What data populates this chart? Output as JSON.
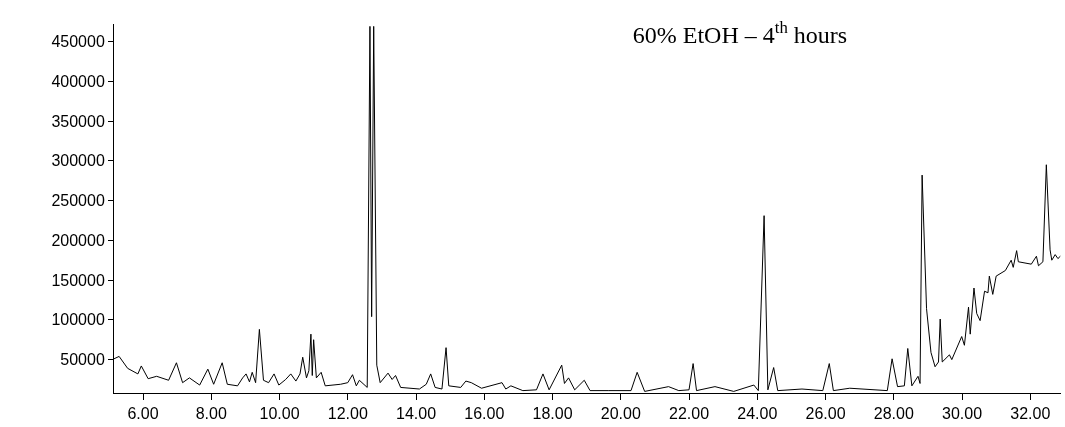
{
  "chart_data": {
    "type": "line",
    "title": "60% EtOH – 4$^{th}$ hours",
    "x": [
      5.15,
      5.3,
      5.55,
      5.85,
      5.95,
      6.15,
      6.4,
      6.75,
      6.98,
      7.16,
      7.36,
      7.66,
      7.9,
      8.07,
      8.32,
      8.47,
      8.77,
      8.92,
      9.02,
      9.12,
      9.2,
      9.3,
      9.41,
      9.53,
      9.68,
      9.84,
      9.98,
      10.18,
      10.33,
      10.48,
      10.6,
      10.68,
      10.79,
      10.86,
      10.92,
      10.96,
      11.0,
      11.08,
      11.22,
      11.34,
      11.79,
      12.0,
      12.14,
      12.25,
      12.34,
      12.57,
      12.65,
      12.7,
      12.76,
      12.85,
      12.95,
      13.18,
      13.3,
      13.4,
      13.55,
      14.1,
      14.3,
      14.43,
      14.56,
      14.76,
      14.88,
      14.96,
      15.31,
      15.46,
      15.62,
      15.92,
      16.52,
      16.63,
      16.78,
      17.13,
      17.53,
      17.72,
      17.9,
      18.27,
      18.35,
      18.47,
      18.65,
      18.93,
      19.1,
      19.65,
      20.3,
      20.48,
      20.7,
      21.4,
      21.7,
      22.0,
      22.12,
      22.22,
      22.76,
      23.31,
      23.9,
      24.03,
      24.2,
      24.31,
      24.48,
      24.6,
      25.31,
      25.92,
      26.11,
      26.23,
      26.71,
      27.81,
      27.95,
      28.11,
      28.31,
      28.41,
      28.53,
      28.71,
      28.77,
      28.83,
      28.96,
      29.09,
      29.21,
      29.31,
      29.36,
      29.42,
      29.63,
      29.7,
      29.99,
      30.07,
      30.19,
      30.24,
      30.35,
      30.43,
      30.53,
      30.66,
      30.76,
      30.8,
      30.9,
      31.0,
      31.27,
      31.44,
      31.5,
      31.6,
      31.65,
      32.03,
      32.18,
      32.24,
      32.37,
      32.47,
      32.58,
      32.63,
      32.73,
      32.81,
      32.88
    ],
    "values": [
      51000,
      54000,
      39000,
      32000,
      42000,
      26000,
      29000,
      24000,
      46000,
      21000,
      27000,
      18000,
      38000,
      19000,
      46000,
      19000,
      17000,
      27000,
      32000,
      22000,
      34000,
      21000,
      88000,
      24000,
      21000,
      32000,
      18000,
      25000,
      32000,
      23000,
      32000,
      53000,
      27000,
      36000,
      82000,
      30000,
      75000,
      27000,
      34000,
      17000,
      19000,
      21000,
      31000,
      17000,
      24000,
      15000,
      469000,
      104000,
      469000,
      43000,
      21000,
      33000,
      25000,
      30000,
      15000,
      13000,
      19000,
      32000,
      15000,
      13000,
      65000,
      17000,
      15000,
      23000,
      21000,
      14000,
      21000,
      13000,
      17000,
      11000,
      12000,
      32000,
      12000,
      43000,
      20000,
      27000,
      12000,
      24000,
      11000,
      11000,
      11000,
      34000,
      10000,
      16000,
      11000,
      12000,
      45000,
      11000,
      16000,
      10000,
      18000,
      11000,
      231000,
      12000,
      40000,
      11000,
      13000,
      11000,
      45000,
      11000,
      14000,
      11000,
      51000,
      16000,
      17000,
      64000,
      17000,
      29000,
      20000,
      282000,
      114000,
      59000,
      41000,
      47000,
      101000,
      47000,
      56000,
      50000,
      79000,
      68000,
      116000,
      82000,
      140000,
      108000,
      99000,
      136000,
      134000,
      155000,
      132000,
      155000,
      162000,
      175000,
      166000,
      187000,
      173000,
      170000,
      180000,
      168000,
      173000,
      295000,
      188000,
      175000,
      182000,
      177000,
      180000
    ],
    "color": "#000000",
    "xlim": [
      5.15,
      32.9
    ],
    "xticks": [
      {
        "value": 6,
        "label": "6.00"
      },
      {
        "value": 8,
        "label": "8.00"
      },
      {
        "value": 10,
        "label": "10.00"
      },
      {
        "value": 12,
        "label": "12.00"
      },
      {
        "value": 14,
        "label": "14.00"
      },
      {
        "value": 16,
        "label": "16.00"
      },
      {
        "value": 18,
        "label": "18.00"
      },
      {
        "value": 20,
        "label": "20.00"
      },
      {
        "value": 22,
        "label": "22.00"
      },
      {
        "value": 24,
        "label": "24.00"
      },
      {
        "value": 26,
        "label": "26.00"
      },
      {
        "value": 28,
        "label": "28.00"
      },
      {
        "value": 30,
        "label": "30.00"
      },
      {
        "value": 32,
        "label": "32.00"
      }
    ],
    "ylim": [
      8000,
      472000
    ],
    "yticks": [
      50000,
      100000,
      150000,
      200000,
      250000,
      300000,
      350000,
      400000,
      450000
    ],
    "line_style": "solid"
  }
}
